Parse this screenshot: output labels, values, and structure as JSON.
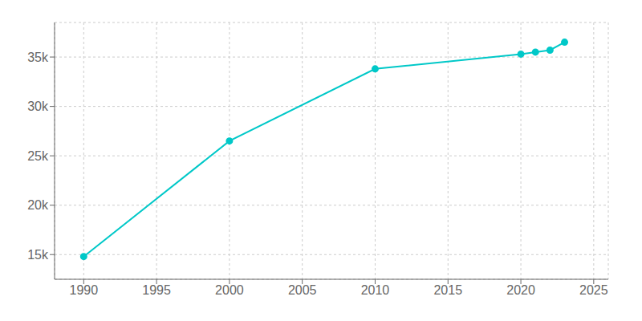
{
  "chart_data": {
    "type": "line",
    "x": [
      1990,
      2000,
      2010,
      2020,
      2021,
      2022,
      2023
    ],
    "values": [
      14800,
      26500,
      33800,
      35300,
      35500,
      35700,
      36500
    ],
    "color": "#00c8c8",
    "marker": "circle",
    "xlim": [
      1988,
      2026
    ],
    "xticks": [
      1990,
      1995,
      2000,
      2005,
      2010,
      2015,
      2020,
      2025
    ],
    "ylim": [
      12500,
      38500
    ],
    "yticks": [
      {
        "value": 15000,
        "label": "15k"
      },
      {
        "value": 20000,
        "label": "20k"
      },
      {
        "value": 25000,
        "label": "25k"
      },
      {
        "value": 30000,
        "label": "30k"
      },
      {
        "value": 35000,
        "label": "35k"
      }
    ],
    "grid": true
  }
}
